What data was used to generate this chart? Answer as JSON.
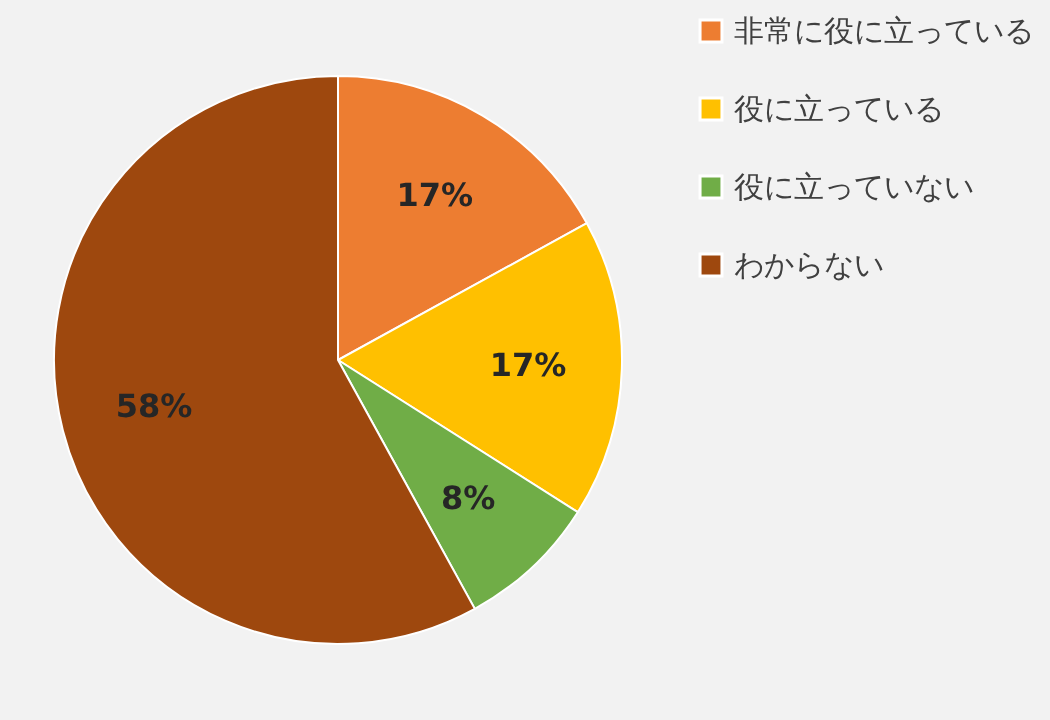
{
  "chart_data": {
    "type": "pie",
    "categories": [
      "非常に役に立っている",
      "役に立っている",
      "役に立っていない",
      "わからない"
    ],
    "values": [
      17,
      17,
      8,
      58
    ],
    "colors": [
      "#ed7d31",
      "#ffc000",
      "#70ad47",
      "#9e480e"
    ],
    "value_labels": [
      "17%",
      "17%",
      "8%",
      "58%"
    ],
    "legend": "right"
  }
}
